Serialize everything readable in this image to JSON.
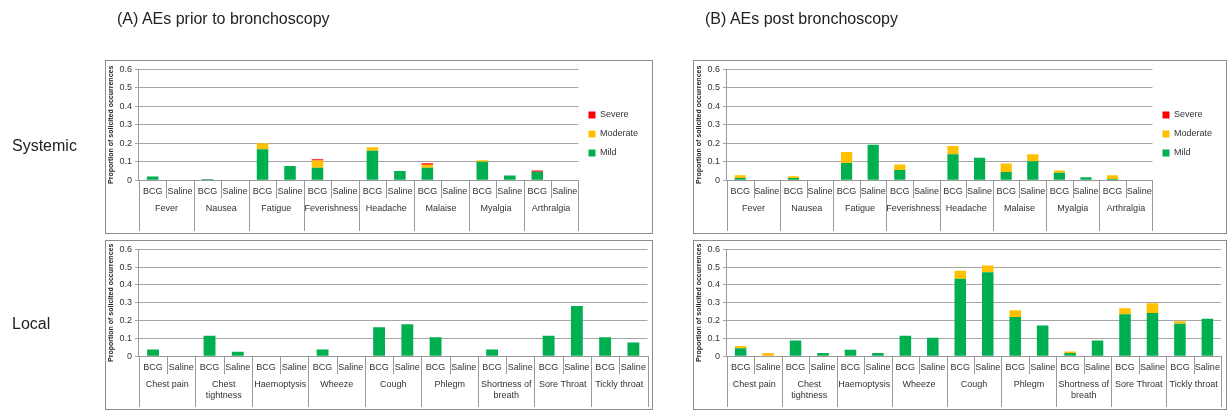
{
  "chart_data": [
    {
      "type": "bar",
      "title": "(A) AEs prior to bronchoscopy",
      "subtitle": "Systemic",
      "ylabel": "Proportion of solicited occurrences",
      "stacked": true,
      "grid": "y",
      "legend": "right",
      "categories": [
        "BCG",
        "Saline",
        "BCG",
        "Saline",
        "BCG",
        "Saline",
        "BCG",
        "Saline",
        "BCG",
        "Saline",
        "BCG",
        "Saline",
        "BCG",
        "Saline",
        "BCG",
        "Saline"
      ],
      "annotations": [
        "Fever",
        "Nausea",
        "Fatigue",
        "Feverishness",
        "Headache",
        "Malaise",
        "Myalgia",
        "Arthralgia"
      ],
      "ylim": [
        0,
        0.6
      ],
      "yticks": [
        0,
        0.1,
        0.2,
        0.3,
        0.4,
        0.5,
        0.6
      ],
      "series": [
        {
          "name": "Mild",
          "color": "#00b050",
          "values": [
            0.02,
            0,
            0.007,
            0,
            0.167,
            0.077,
            0.067,
            0,
            0.16,
            0.05,
            0.067,
            0,
            0.1,
            0.025,
            0.046,
            0
          ]
        },
        {
          "name": "Moderate",
          "color": "#ffc000",
          "values": [
            0,
            0,
            0,
            0,
            0.033,
            0,
            0.04,
            0,
            0.018,
            0,
            0.017,
            0,
            0.008,
            0,
            0,
            0
          ]
        },
        {
          "name": "Severe",
          "color": "#ff0000",
          "values": [
            0,
            0,
            0,
            0,
            0,
            0,
            0.007,
            0,
            0,
            0,
            0.008,
            0,
            0,
            0,
            0.007,
            0
          ]
        }
      ]
    },
    {
      "type": "bar",
      "title": "(B) AEs post bronchoscopy",
      "ylabel": "Proportion of solicited occurrences",
      "stacked": true,
      "grid": "y",
      "legend": "right",
      "categories": [
        "BCG",
        "Saline",
        "BCG",
        "Saline",
        "BCG",
        "Saline",
        "BCG",
        "Saline",
        "BCG",
        "Saline",
        "BCG",
        "Saline",
        "BCG",
        "Saline",
        "BCG",
        "Saline"
      ],
      "annotations": [
        "Fever",
        "Nausea",
        "Fatigue",
        "Feverishness",
        "Headache",
        "Malaise",
        "Myalgia",
        "Arthralgia"
      ],
      "ylim": [
        0,
        0.6
      ],
      "yticks": [
        0,
        0.1,
        0.2,
        0.3,
        0.4,
        0.5,
        0.6
      ],
      "series": [
        {
          "name": "Mild",
          "color": "#00b050",
          "values": [
            0.012,
            0,
            0.012,
            0,
            0.093,
            0.192,
            0.055,
            0,
            0.14,
            0.122,
            0.045,
            0.103,
            0.04,
            0.016,
            0.007,
            0
          ]
        },
        {
          "name": "Moderate",
          "color": "#ffc000",
          "values": [
            0.015,
            0,
            0.01,
            0,
            0.06,
            0,
            0.03,
            0,
            0.045,
            0,
            0.045,
            0.038,
            0.013,
            0,
            0.02,
            0
          ]
        },
        {
          "name": "Severe",
          "color": "#ff0000",
          "values": [
            0,
            0,
            0,
            0,
            0,
            0,
            0,
            0,
            0,
            0,
            0,
            0,
            0,
            0,
            0,
            0
          ]
        }
      ]
    },
    {
      "type": "bar",
      "subtitle": "Local",
      "ylabel": "Proportion of solicited occurrences",
      "stacked": true,
      "grid": "y",
      "categories": [
        "BCG",
        "Saline",
        "BCG",
        "Saline",
        "BCG",
        "Saline",
        "BCG",
        "Saline",
        "BCG",
        "Saline",
        "BCG",
        "Saline",
        "BCG",
        "Saline",
        "BCG",
        "Saline",
        "BCG",
        "Saline"
      ],
      "annotations": [
        "Chest pain",
        "Chest tightness",
        "Haemoptysis",
        "Wheeze",
        "Cough",
        "Phlegm",
        "Shortness of breath",
        "Sore Throat",
        "Tickly throat"
      ],
      "ylim": [
        0,
        0.6
      ],
      "yticks": [
        0,
        0.1,
        0.2,
        0.3,
        0.4,
        0.5,
        0.6
      ],
      "series": [
        {
          "color": "#00b050",
          "values": [
            0.038,
            0,
            0.115,
            0.025,
            0,
            0,
            0.038,
            0,
            0.163,
            0.18,
            0.107,
            0,
            0.038,
            0,
            0.115,
            0.282,
            0.107,
            0.077
          ]
        }
      ]
    },
    {
      "type": "bar",
      "ylabel": "Proportion of solicited occurrences",
      "stacked": true,
      "grid": "y",
      "categories": [
        "BCG",
        "Saline",
        "BCG",
        "Saline",
        "BCG",
        "Saline",
        "BCG",
        "Saline",
        "BCG",
        "Saline",
        "BCG",
        "Saline",
        "BCG",
        "Saline",
        "BCG",
        "Saline",
        "BCG",
        "Saline"
      ],
      "annotations": [
        "Chest pain",
        "Chest tightness",
        "Haemoptysis",
        "Wheeze",
        "Cough",
        "Phlegm",
        "Shortness of breath",
        "Sore Throat",
        "Tickly throat"
      ],
      "ylim": [
        0,
        0.6
      ],
      "yticks": [
        0,
        0.1,
        0.2,
        0.3,
        0.4,
        0.5,
        0.6
      ],
      "series": [
        {
          "color": "#00b050",
          "values": [
            0.045,
            0,
            0.088,
            0.018,
            0.036,
            0.018,
            0.115,
            0.103,
            0.435,
            0.472,
            0.22,
            0.173,
            0.018,
            0.088,
            0.235,
            0.243,
            0.183,
            0.21
          ]
        },
        {
          "color": "#ffc000",
          "values": [
            0.013,
            0.018,
            0,
            0,
            0,
            0,
            0,
            0,
            0.045,
            0.038,
            0.038,
            0,
            0.008,
            0,
            0.035,
            0.055,
            0.013,
            0
          ]
        }
      ]
    }
  ]
}
